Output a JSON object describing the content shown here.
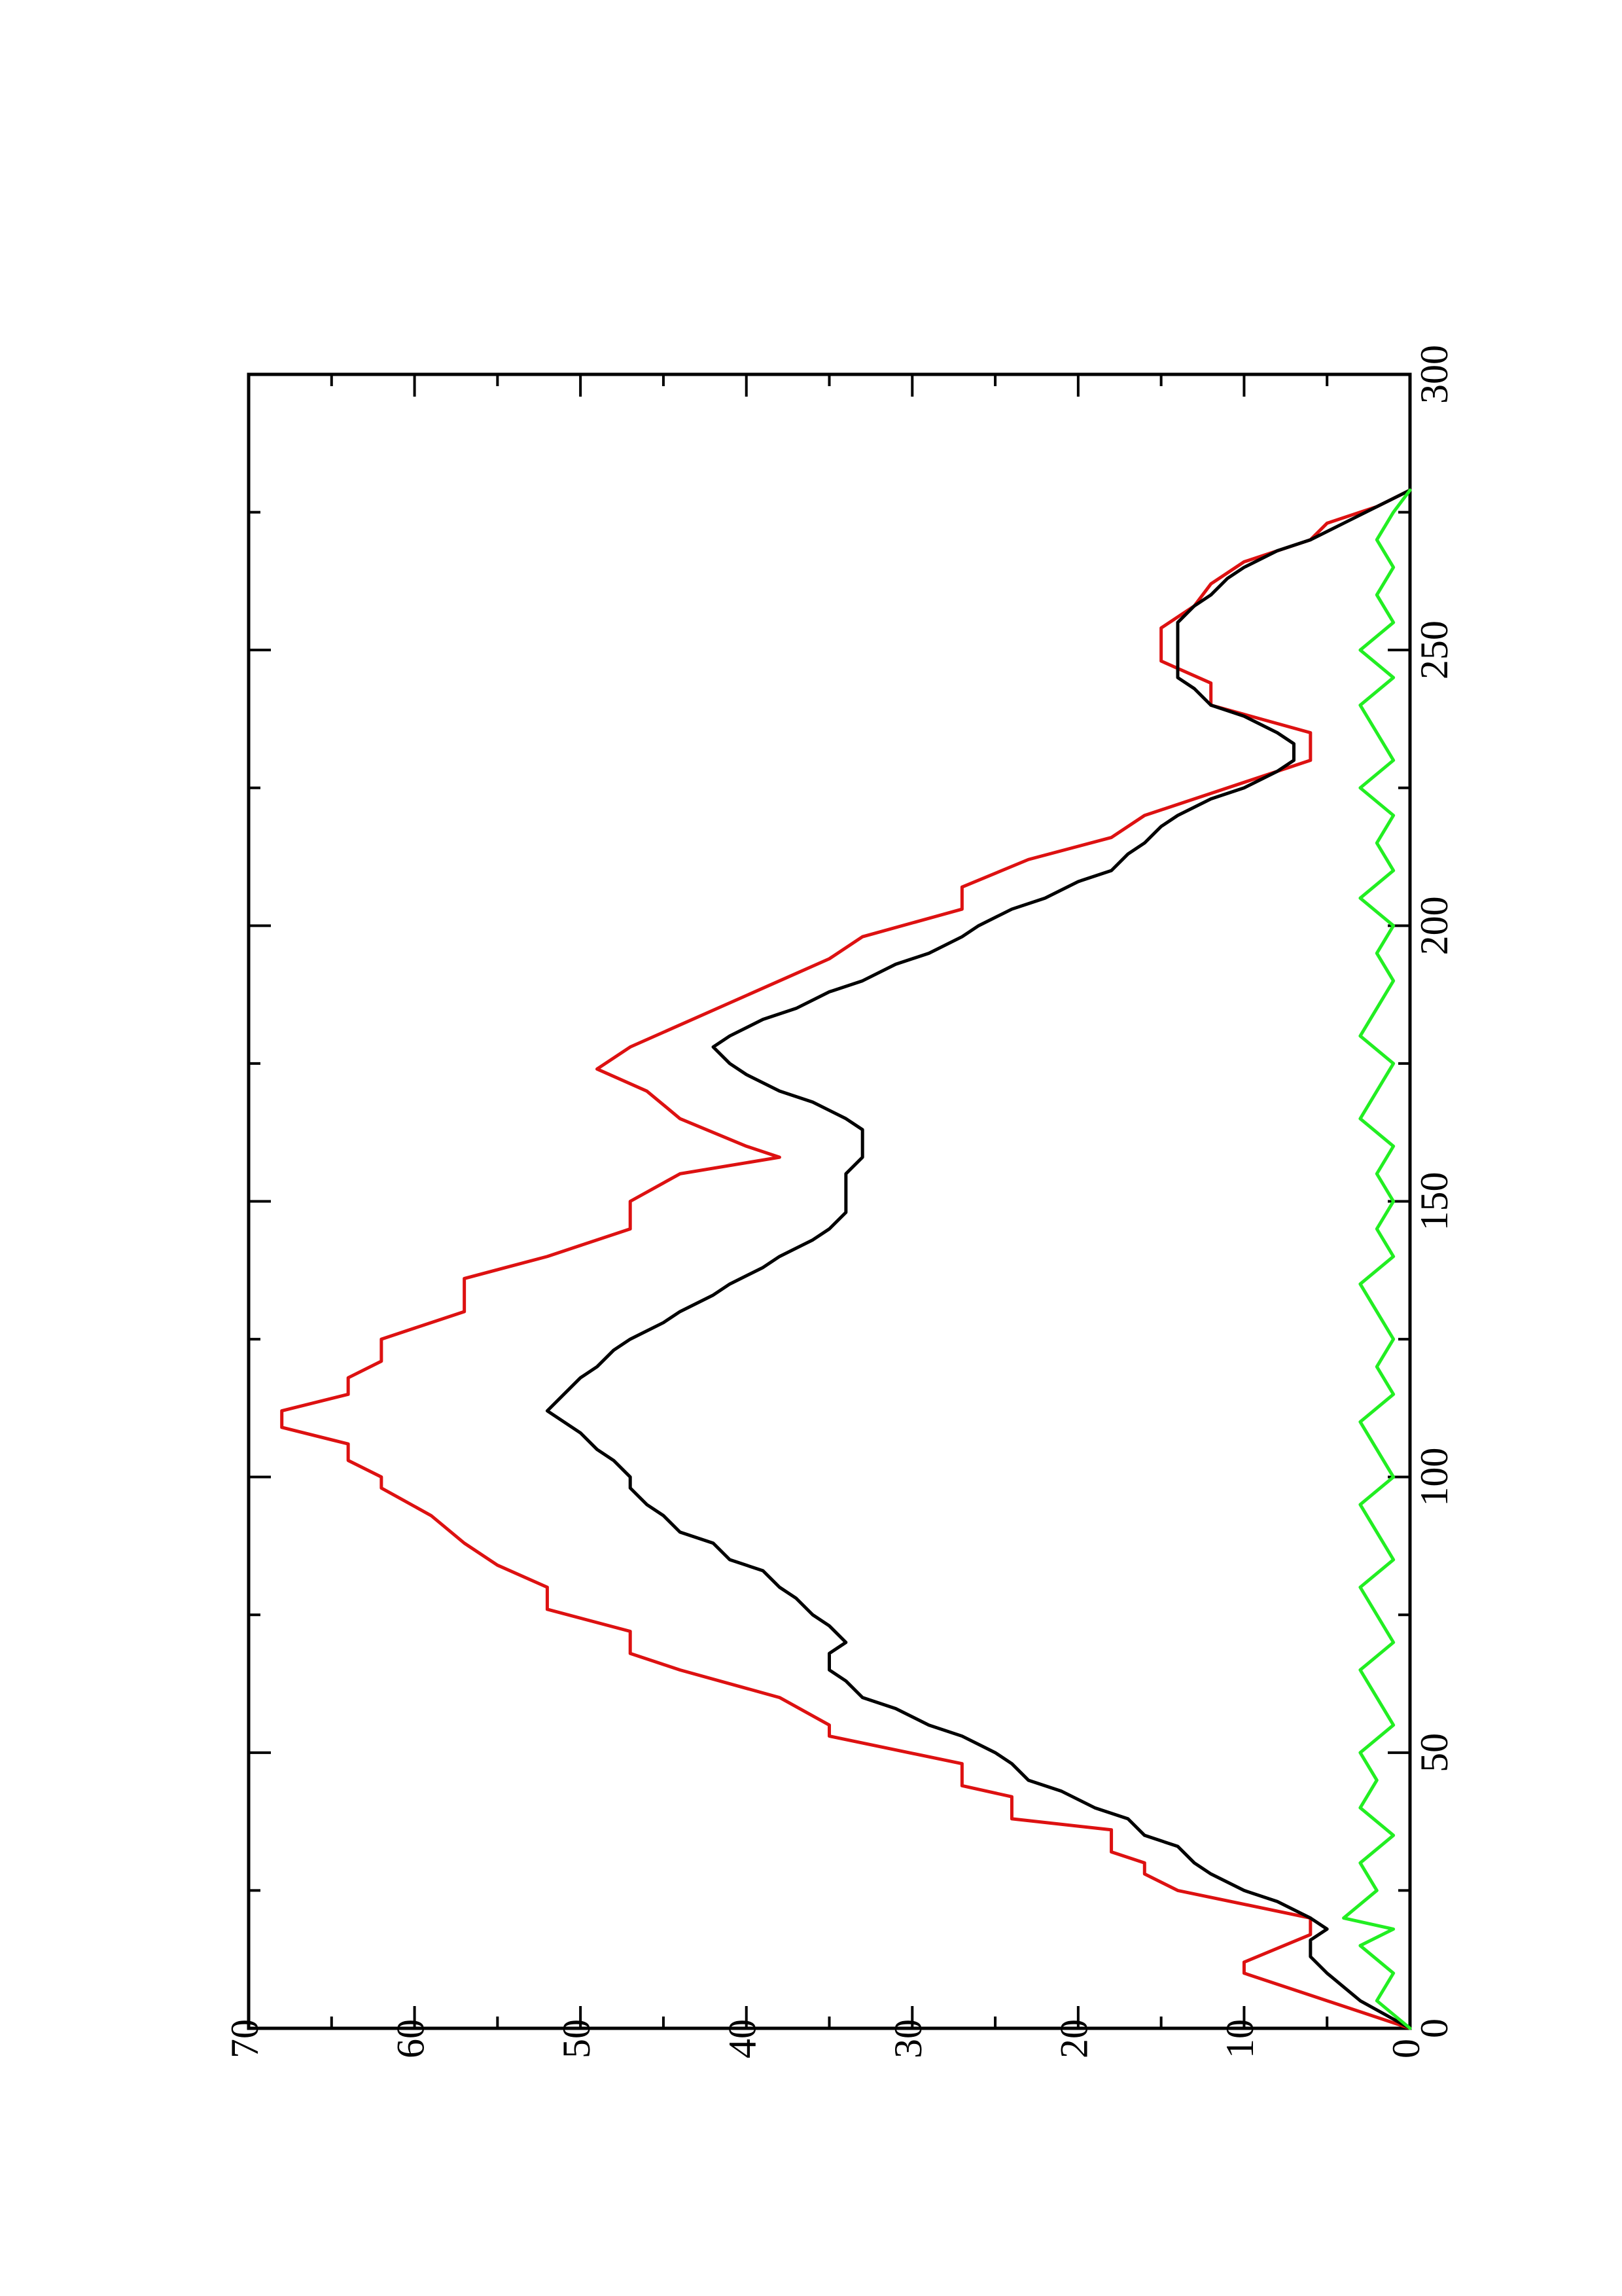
{
  "chart_data": {
    "type": "line",
    "orientation": "page rotated 90 degrees counter-clockwise",
    "title": "",
    "xlabel": "",
    "ylabel": "",
    "xlim": [
      0,
      300
    ],
    "ylim": [
      0,
      70
    ],
    "x_ticks": [
      0,
      50,
      100,
      150,
      200,
      250,
      300
    ],
    "y_ticks": [
      0,
      10,
      20,
      30,
      40,
      50,
      60,
      70
    ],
    "x_tick_labels": [
      "0",
      "50",
      "100",
      "150",
      "200",
      "250",
      "300"
    ],
    "y_tick_labels": [
      "0",
      "10",
      "20",
      "30",
      "40",
      "50",
      "60",
      "70"
    ],
    "grid": false,
    "legend": "none",
    "series": [
      {
        "color": "#dd1111",
        "step_like": true,
        "x": [
          0,
          10,
          12,
          17,
          20,
          25,
          28,
          30,
          32,
          36,
          38,
          42,
          44,
          48,
          53,
          55,
          60,
          65,
          68,
          72,
          76,
          80,
          84,
          88,
          93,
          98,
          100,
          103,
          106,
          109,
          112,
          115,
          118,
          121,
          125,
          130,
          136,
          140,
          145,
          150,
          155,
          158,
          160,
          165,
          170,
          174,
          178,
          182,
          186,
          190,
          194,
          198,
          203,
          207,
          212,
          216,
          220,
          225,
          230,
          235,
          240,
          244,
          248,
          254,
          258,
          262,
          266,
          270,
          273,
          276,
          279
        ],
        "y": [
          0,
          10,
          10,
          6,
          6,
          14,
          16,
          16,
          18,
          18,
          24,
          24,
          27,
          27,
          35,
          35,
          38,
          44,
          47,
          47,
          52,
          52,
          55,
          57,
          59,
          62,
          62,
          64,
          64,
          68,
          68,
          64,
          64,
          62,
          62,
          57,
          57,
          52,
          47,
          47,
          44,
          38,
          40,
          44,
          46,
          49,
          47,
          44,
          41,
          38,
          35,
          33,
          27,
          27,
          23,
          18,
          16,
          11,
          6,
          6,
          12,
          12,
          15,
          15,
          13,
          12,
          10,
          6,
          5,
          2,
          0
        ]
      },
      {
        "color": "#000000",
        "step_like": false,
        "x": [
          0,
          5,
          10,
          13,
          16,
          18,
          20,
          23,
          25,
          28,
          30,
          33,
          35,
          38,
          40,
          43,
          45,
          48,
          50,
          53,
          55,
          58,
          60,
          63,
          65,
          68,
          70,
          73,
          75,
          78,
          80,
          83,
          85,
          88,
          90,
          93,
          95,
          98,
          100,
          103,
          105,
          108,
          110,
          112,
          115,
          118,
          120,
          123,
          125,
          128,
          130,
          133,
          135,
          138,
          140,
          143,
          145,
          148,
          150,
          153,
          155,
          158,
          160,
          163,
          165,
          168,
          170,
          173,
          175,
          178,
          180,
          183,
          185,
          188,
          190,
          193,
          195,
          198,
          200,
          203,
          205,
          208,
          210,
          213,
          215,
          218,
          220,
          223,
          225,
          228,
          230,
          233,
          235,
          238,
          240,
          243,
          245,
          248,
          250,
          253,
          255,
          258,
          260,
          263,
          265,
          268,
          270,
          273,
          276,
          279
        ],
        "y": [
          0,
          3,
          5,
          6,
          6,
          5,
          6,
          8,
          10,
          12,
          13,
          14,
          16,
          17,
          19,
          21,
          23,
          24,
          25,
          27,
          29,
          31,
          33,
          34,
          35,
          35,
          34,
          35,
          36,
          37,
          38,
          39,
          41,
          42,
          44,
          45,
          46,
          47,
          47,
          48,
          49,
          50,
          51,
          52,
          51,
          50,
          49,
          48,
          47,
          45,
          44,
          42,
          41,
          39,
          38,
          36,
          35,
          34,
          34,
          34,
          34,
          33,
          33,
          33,
          34,
          36,
          38,
          40,
          41,
          42,
          41,
          39,
          37,
          35,
          33,
          31,
          29,
          27,
          26,
          24,
          22,
          20,
          18,
          17,
          16,
          15,
          14,
          12,
          10,
          8,
          7,
          7,
          8,
          10,
          12,
          13,
          14,
          14,
          14,
          14,
          14,
          13,
          12,
          11,
          10,
          8,
          6,
          4,
          2,
          0
        ]
      },
      {
        "color": "#22ee22",
        "step_like": false,
        "x": [
          0,
          5,
          10,
          15,
          18,
          20,
          25,
          30,
          35,
          40,
          45,
          50,
          55,
          60,
          65,
          70,
          75,
          80,
          85,
          90,
          95,
          100,
          105,
          110,
          115,
          120,
          125,
          130,
          135,
          140,
          145,
          150,
          155,
          160,
          165,
          170,
          175,
          180,
          185,
          190,
          195,
          200,
          205,
          210,
          215,
          220,
          225,
          230,
          235,
          240,
          245,
          250,
          255,
          260,
          265,
          270,
          275,
          279
        ],
        "y": [
          0,
          2,
          1,
          3,
          1,
          4,
          2,
          3,
          1,
          3,
          2,
          3,
          1,
          2,
          3,
          1,
          2,
          3,
          1,
          2,
          3,
          1,
          2,
          3,
          1,
          2,
          1,
          2,
          3,
          1,
          2,
          1,
          2,
          1,
          3,
          2,
          1,
          3,
          2,
          1,
          2,
          1,
          3,
          1,
          2,
          1,
          3,
          1,
          2,
          3,
          1,
          3,
          1,
          2,
          1,
          2,
          1,
          0
        ]
      }
    ]
  }
}
